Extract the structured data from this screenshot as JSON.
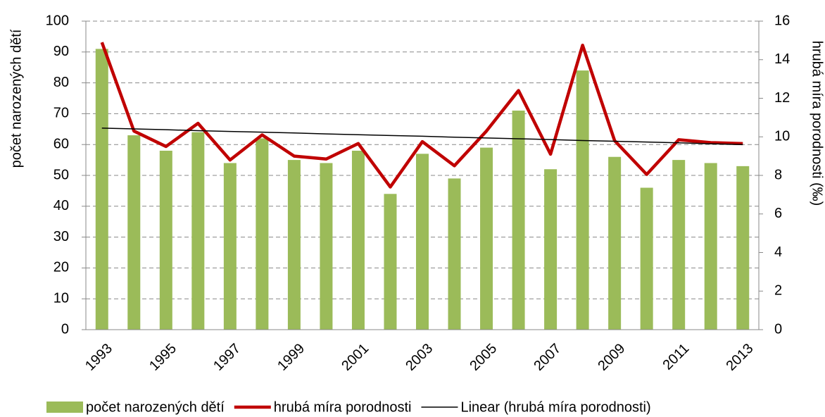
{
  "chart_data": {
    "type": "bar",
    "categories": [
      "1993",
      null,
      "1995",
      null,
      "1997",
      null,
      "1999",
      null,
      "2001",
      null,
      "2003",
      null,
      "2005",
      null,
      "2007",
      null,
      "2009",
      null,
      "2011",
      null,
      "2013"
    ],
    "y_label": "počet narozených dětí",
    "y2_label": "hrubá míra porodnosti (‰)",
    "ylim": [
      0,
      100
    ],
    "yticks": [
      0,
      10,
      20,
      30,
      40,
      50,
      60,
      70,
      80,
      90,
      100
    ],
    "y2lim": [
      0,
      16
    ],
    "y2ticks": [
      0,
      2,
      4,
      6,
      8,
      10,
      12,
      14,
      16
    ],
    "grid": true,
    "legend": "bottom",
    "series": [
      {
        "name": "počet narozených dětí",
        "type": "bar",
        "color": "#9bbb59",
        "values": [
          91,
          63,
          58,
          64,
          54,
          62,
          55,
          54,
          58,
          44,
          57,
          49,
          59,
          71,
          52,
          84,
          56,
          46,
          55,
          54,
          53
        ]
      },
      {
        "name": "hrubá míra porodnosti",
        "type": "line",
        "axis": "y2",
        "color": "#c00000",
        "values": [
          14.9,
          10.3,
          9.5,
          10.7,
          8.8,
          10.1,
          9.0,
          8.85,
          9.65,
          7.4,
          9.75,
          8.5,
          10.3,
          12.4,
          9.1,
          14.75,
          9.8,
          8.05,
          9.85,
          9.7,
          9.65
        ]
      },
      {
        "name": "Linear (hrubá míra porodnosti)",
        "type": "line",
        "axis": "y2",
        "color": "#000000",
        "values": [
          10.45,
          10.41,
          10.37,
          10.32,
          10.28,
          10.24,
          10.2,
          10.15,
          10.11,
          10.07,
          10.03,
          9.98,
          9.94,
          9.9,
          9.86,
          9.81,
          9.77,
          9.73,
          9.69,
          9.64,
          9.6
        ]
      }
    ]
  }
}
